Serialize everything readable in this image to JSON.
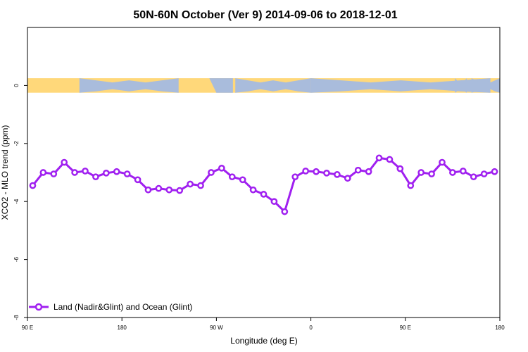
{
  "chart_data": {
    "type": "line",
    "title": "50N-60N October (Ver 9)   2014-09-06 to 2018-12-01",
    "xlabel": "Longitude (deg E)",
    "ylabel": "XCO2 - MLO trend (ppm)",
    "xlim": [
      90,
      540
    ],
    "ylim": [
      -8,
      2
    ],
    "x_ticks": [
      {
        "value": 90,
        "label": "90 E"
      },
      {
        "value": 180,
        "label": "180"
      },
      {
        "value": 270,
        "label": "90 W"
      },
      {
        "value": 360,
        "label": "0"
      },
      {
        "value": 450,
        "label": "90 E"
      },
      {
        "value": 540,
        "label": "180"
      }
    ],
    "y_ticks": [
      {
        "value": 0,
        "label": "0"
      },
      {
        "value": -2,
        "label": "-2"
      },
      {
        "value": -4,
        "label": "-4"
      },
      {
        "value": -6,
        "label": "-6"
      },
      {
        "value": -8,
        "label": "-8"
      }
    ],
    "map_band": {
      "y_range": [
        -0.25,
        0.25
      ],
      "ocean_color": "#a9bcdc",
      "land_color": "#ffd87a"
    },
    "series": [
      {
        "name": "Land (Nadir&Glint) and Ocean (Glint)",
        "color": "#a020f0",
        "x": [
          95,
          105,
          115,
          125,
          135,
          145,
          155,
          165,
          175,
          185,
          195,
          205,
          215,
          225,
          235,
          245,
          255,
          265,
          275,
          285,
          295,
          305,
          315,
          325,
          335,
          345,
          355,
          365,
          375,
          385,
          395,
          405,
          415,
          425,
          435,
          445,
          455,
          465,
          475,
          485,
          495,
          505,
          515,
          525,
          535
        ],
        "y": [
          -3.45,
          -3.0,
          -3.05,
          -2.65,
          -3.0,
          -2.95,
          -3.15,
          -3.02,
          -2.97,
          -3.05,
          -3.25,
          -3.6,
          -3.55,
          -3.6,
          -3.62,
          -3.4,
          -3.45,
          -3.0,
          -2.85,
          -3.15,
          -3.25,
          -3.6,
          -3.75,
          -4.0,
          -4.35,
          -3.15,
          -2.95,
          -2.97,
          -3.02,
          -3.07,
          -3.2,
          -2.92,
          -2.97,
          -2.5,
          -2.55,
          -2.87,
          -3.45,
          -3.0,
          -3.05,
          -2.65,
          -3.0,
          -2.95,
          -3.15,
          -3.05,
          -2.97
        ]
      }
    ],
    "legend": {
      "position": "bottom-left"
    }
  }
}
